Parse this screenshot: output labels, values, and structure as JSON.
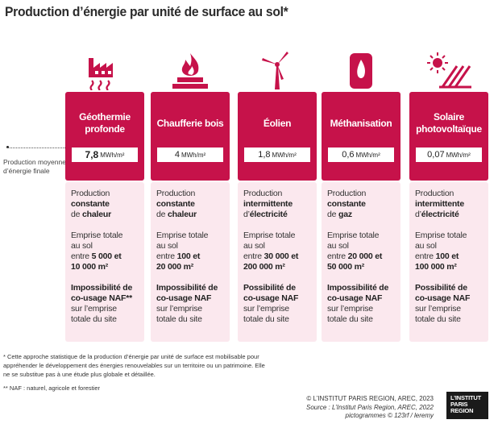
{
  "title": "Production d’énergie par unité de surface au sol*",
  "side_note": "Production moyenne\nd’énergie finale",
  "unit": "MWh/m²",
  "columns": [
    {
      "icon": "factory-geothermal-icon",
      "name": "Géothermie profonde",
      "value": "7,8",
      "desc": [
        [
          "Production",
          "constante",
          "de",
          "chaleur"
        ],
        [
          "Emprise totale",
          "au sol",
          "entre 5 000 et",
          "10 000 m²"
        ],
        [
          "Impossibilité de",
          "co-usage NAF**",
          "sur l’emprise",
          "totale du site"
        ]
      ]
    },
    {
      "icon": "firewood-flame-icon",
      "name": "Chaufferie bois",
      "value": "4",
      "desc": [
        [
          "Production",
          "constante",
          "de",
          "chaleur"
        ],
        [
          "Emprise totale",
          "au sol",
          "entre 100 et",
          "20 000 m²"
        ],
        [
          "Impossibilité de",
          "co-usage NAF",
          "sur l’emprise",
          "totale du site"
        ]
      ]
    },
    {
      "icon": "wind-turbine-icon",
      "name": "Éolien",
      "value": "1,8",
      "desc": [
        [
          "Production",
          "intermittente",
          "d’",
          "électricité"
        ],
        [
          "Emprise totale",
          "au sol",
          "entre 30 000 et",
          "200 000 m²"
        ],
        [
          "Possibilité de",
          "co-usage NAF",
          "sur l’emprise",
          "totale du site"
        ]
      ]
    },
    {
      "icon": "gas-flame-icon",
      "name": "Méthanisation",
      "value": "0,6",
      "desc": [
        [
          "Production",
          "constante",
          "de",
          "gaz"
        ],
        [
          "Emprise totale",
          "au sol",
          "entre 20 000 et",
          "50 000 m²"
        ],
        [
          "Impossibilité de",
          "co-usage NAF",
          "sur l’emprise",
          "totale du site"
        ]
      ]
    },
    {
      "icon": "solar-panel-icon",
      "name": "Solaire photovoltaïque",
      "value": "0,07",
      "desc": [
        [
          "Production",
          "intermittente",
          "d’",
          "électricité"
        ],
        [
          "Emprise totale",
          "au sol",
          "entre 100 et",
          "100 000 m²"
        ],
        [
          "Possibilité de",
          "co-usage NAF",
          "sur l’emprise",
          "totale du site"
        ]
      ]
    }
  ],
  "footnote1": "* Cette approche statistique de la production d’énergie par unité de surface est mobilisable pour appréhender le développement des énergies renouvelables sur un territoire ou un patrimoine. Elle ne se substitue pas à une étude plus globale et détaillée.",
  "footnote2": "** NAF : naturel, agricole et forestier",
  "credit1": "© L’INSTITUT PARIS REGION, AREC, 2023",
  "credit2": "Source : L’Institut Paris Region, AREC, 2022",
  "credit3": "pictogrammes © 123rf / leremy",
  "logo": [
    "L’INSTITUT",
    "PARIS",
    "REGION"
  ],
  "colors": {
    "accent": "#c6124a",
    "panel": "#fbe8ee"
  }
}
